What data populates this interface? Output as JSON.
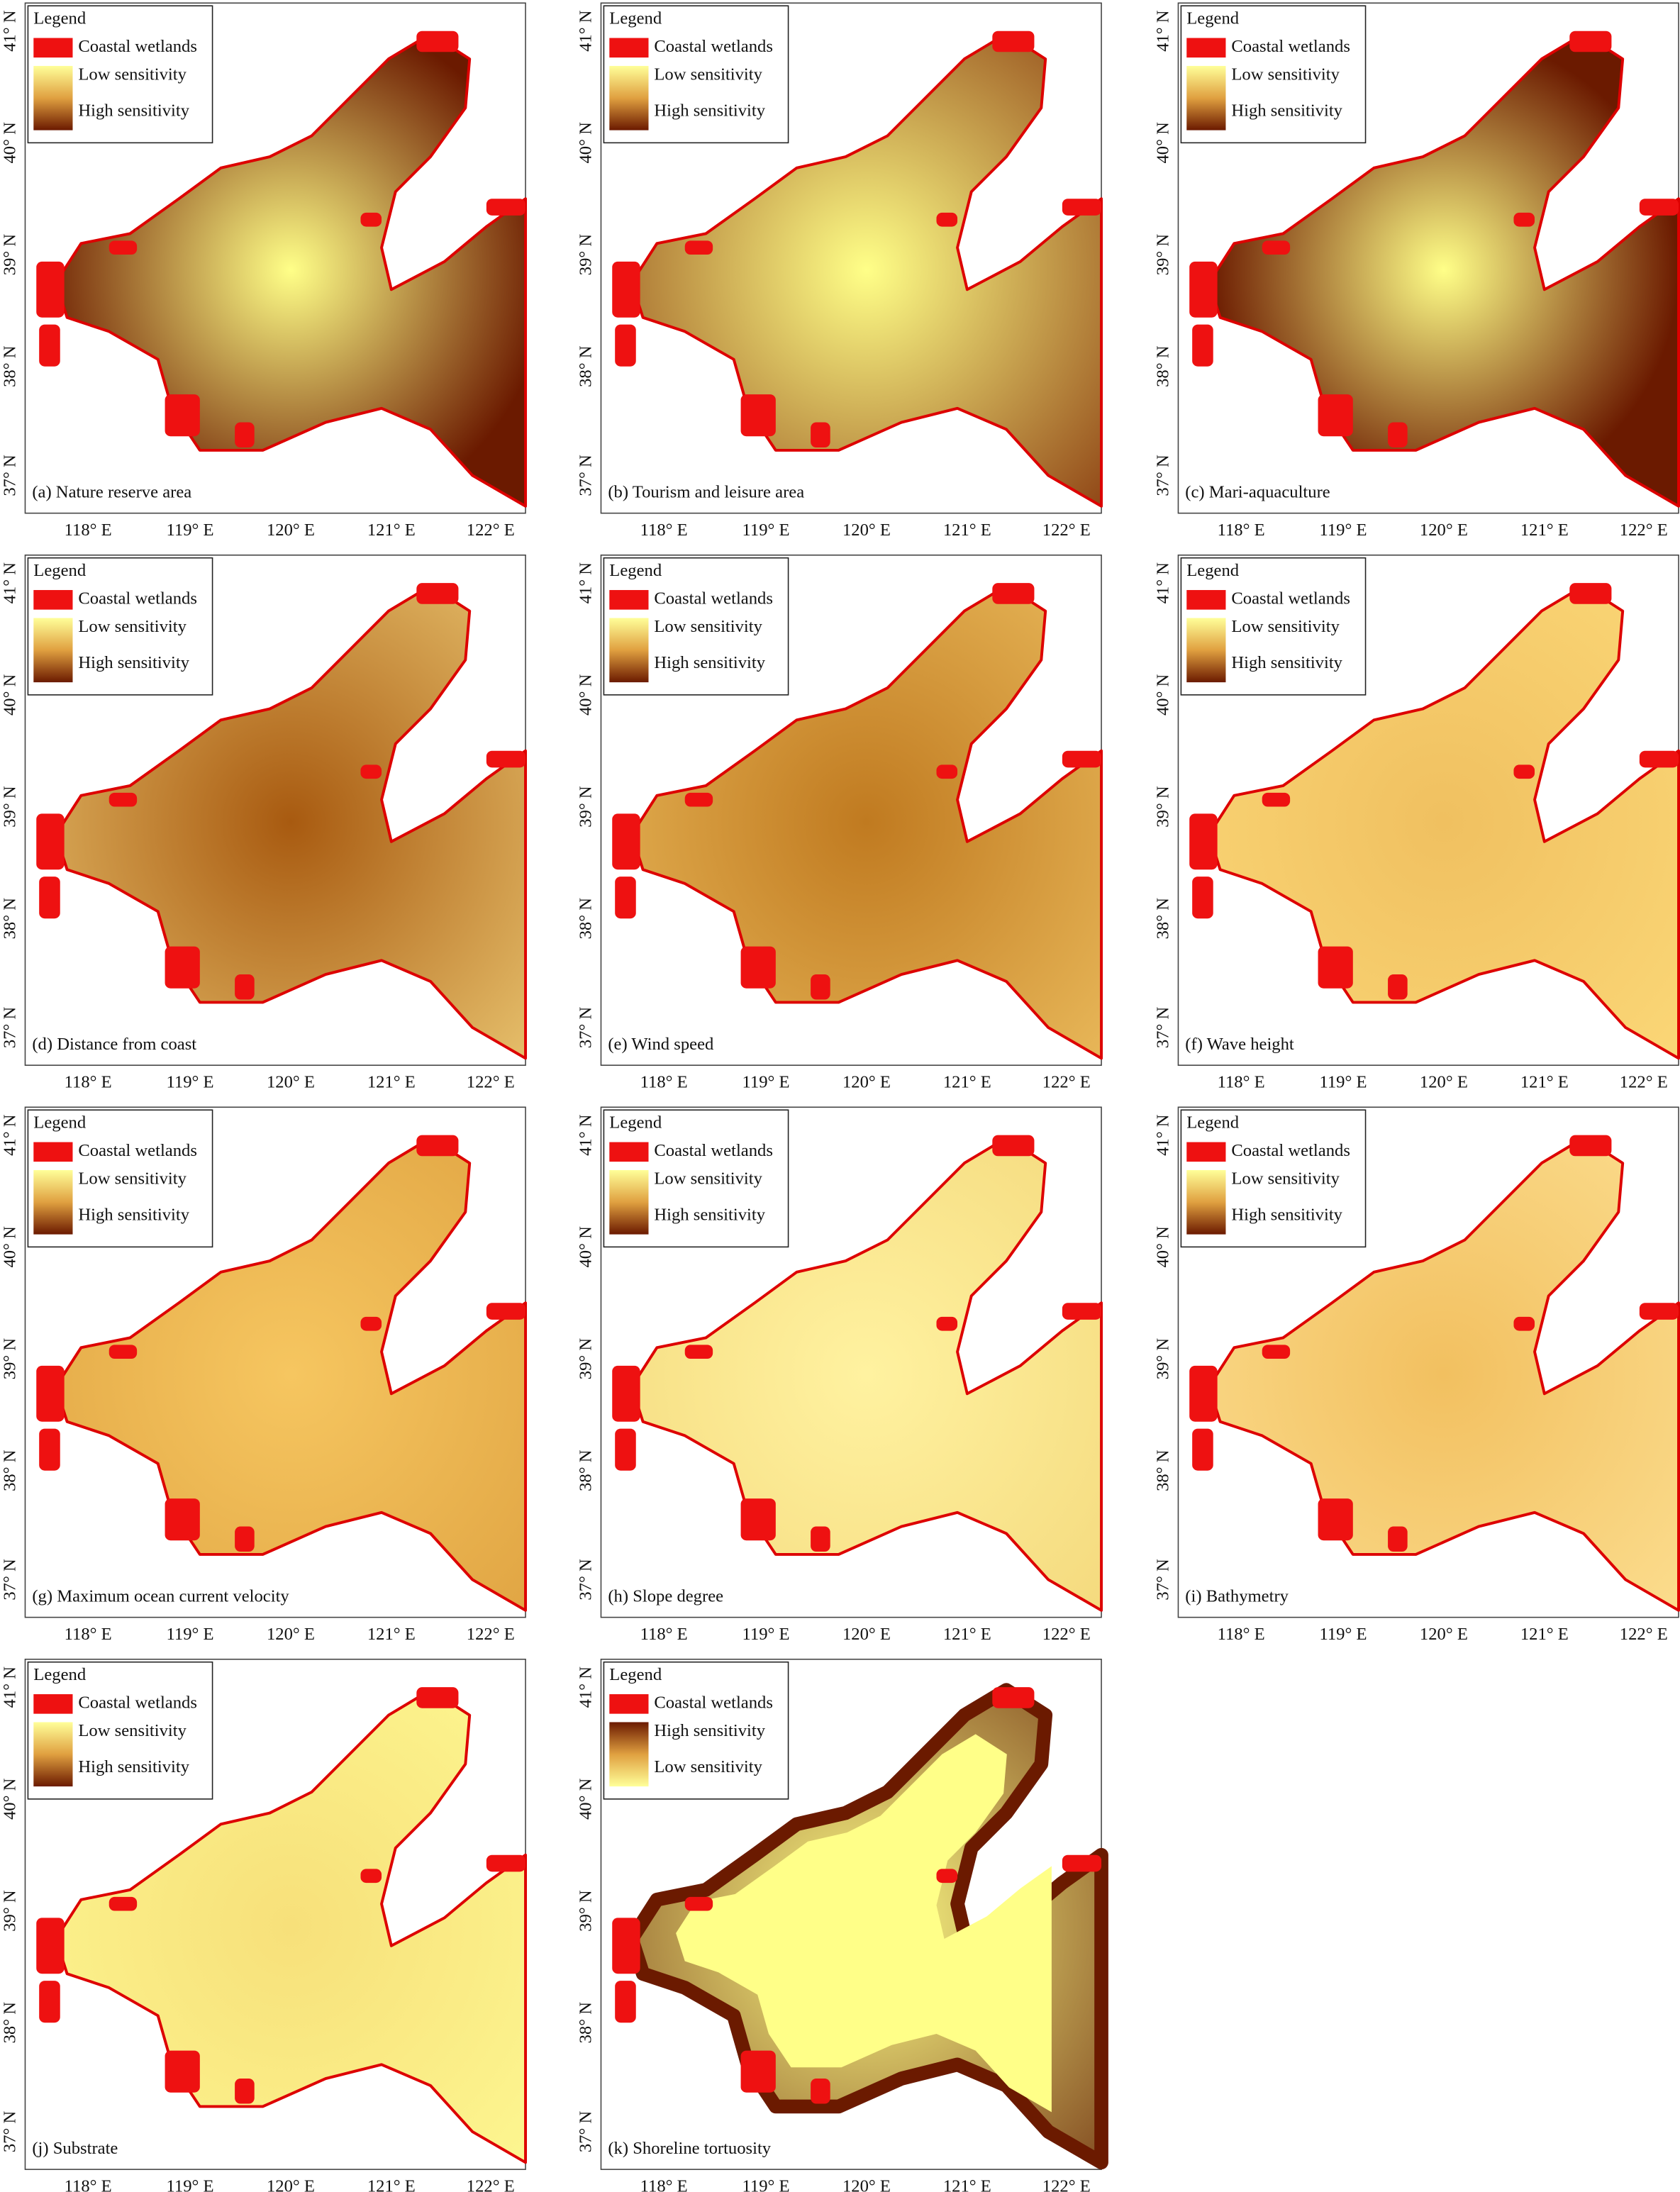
{
  "legend_title": "Legend",
  "lat_labels": [
    "41° N",
    "40° N",
    "39° N",
    "38° N",
    "37° N"
  ],
  "lon_labels": [
    "118° E",
    "119° E",
    "120° E",
    "121° E",
    "122° E"
  ],
  "panels": [
    {
      "caption": "(a) Nature reserve area",
      "legend": [
        "Coastal wetlands",
        "Low sensitivity",
        "High sensitivity"
      ]
    },
    {
      "caption": "(b) Tourism and leisure area",
      "legend": [
        "Coastal wetlands",
        "Low sensitivity",
        "High sensitivity"
      ]
    },
    {
      "caption": "(c) Mari-aquaculture",
      "legend": [
        "Coastal wetlands",
        "Low sensitivity",
        "High sensitivity"
      ]
    },
    {
      "caption": "(d) Distance from coast",
      "legend": [
        "Coastal wetlands",
        "Low sensitivity",
        "High sensitivity"
      ]
    },
    {
      "caption": "(e) Wind speed",
      "legend": [
        "Coastal wetlands",
        "Low sensitivity",
        "High sensitivity"
      ]
    },
    {
      "caption": "(f) Wave height",
      "legend": [
        "Coastal wetlands",
        "Low sensitivity",
        "High sensitivity"
      ]
    },
    {
      "caption": "(g) Maximum ocean current velocity",
      "legend": [
        "Coastal wetlands",
        "Low sensitivity",
        "High sensitivity"
      ]
    },
    {
      "caption": "(h) Slope degree",
      "legend": [
        "Coastal wetlands",
        "Low sensitivity",
        "High sensitivity"
      ]
    },
    {
      "caption": "(i) Bathymetry",
      "legend": [
        "Coastal wetlands",
        "Low sensitivity",
        "High sensitivity"
      ]
    },
    {
      "caption": "(j) Substrate",
      "legend": [
        "Coastal wetlands",
        "Low sensitivity",
        "High sensitivity"
      ]
    },
    {
      "caption": "(k) Shoreline tortuosity",
      "legend": [
        "Coastal wetlands",
        "High sensitivity",
        "Low sensitivity"
      ]
    }
  ]
}
